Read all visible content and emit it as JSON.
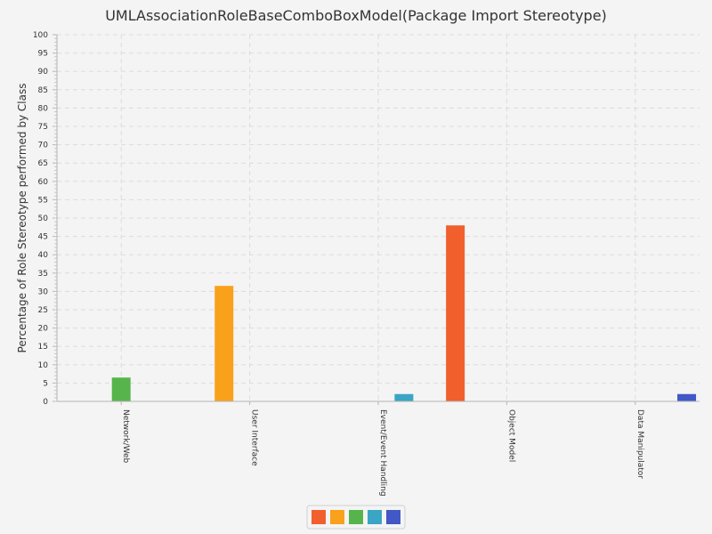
{
  "chart_data": {
    "type": "bar",
    "title": "UMLAssociationRoleBaseComboBoxModel(Package Import Stereotype)",
    "xlabel": "",
    "ylabel": "Percentage of Role Stereotype performed by Class",
    "ylim": [
      0,
      100
    ],
    "ytick_step": 5,
    "grid": true,
    "legend_position": "bottom-center",
    "categories": [
      "Network/Web",
      "User Interface",
      "Event/Event Handling",
      "Object Model",
      "Data Manipulator"
    ],
    "series": [
      {
        "color": "#f15f2d",
        "values": [
          0,
          0,
          0,
          48,
          0
        ]
      },
      {
        "color": "#f9a11b",
        "values": [
          0,
          31.5,
          0,
          0,
          0
        ]
      },
      {
        "color": "#57b44c",
        "values": [
          6.5,
          0,
          0,
          0,
          0
        ]
      },
      {
        "color": "#3aa5c4",
        "values": [
          0,
          0,
          2,
          0,
          0
        ]
      },
      {
        "color": "#4158c6",
        "values": [
          0,
          0,
          0,
          0,
          2
        ]
      }
    ]
  }
}
